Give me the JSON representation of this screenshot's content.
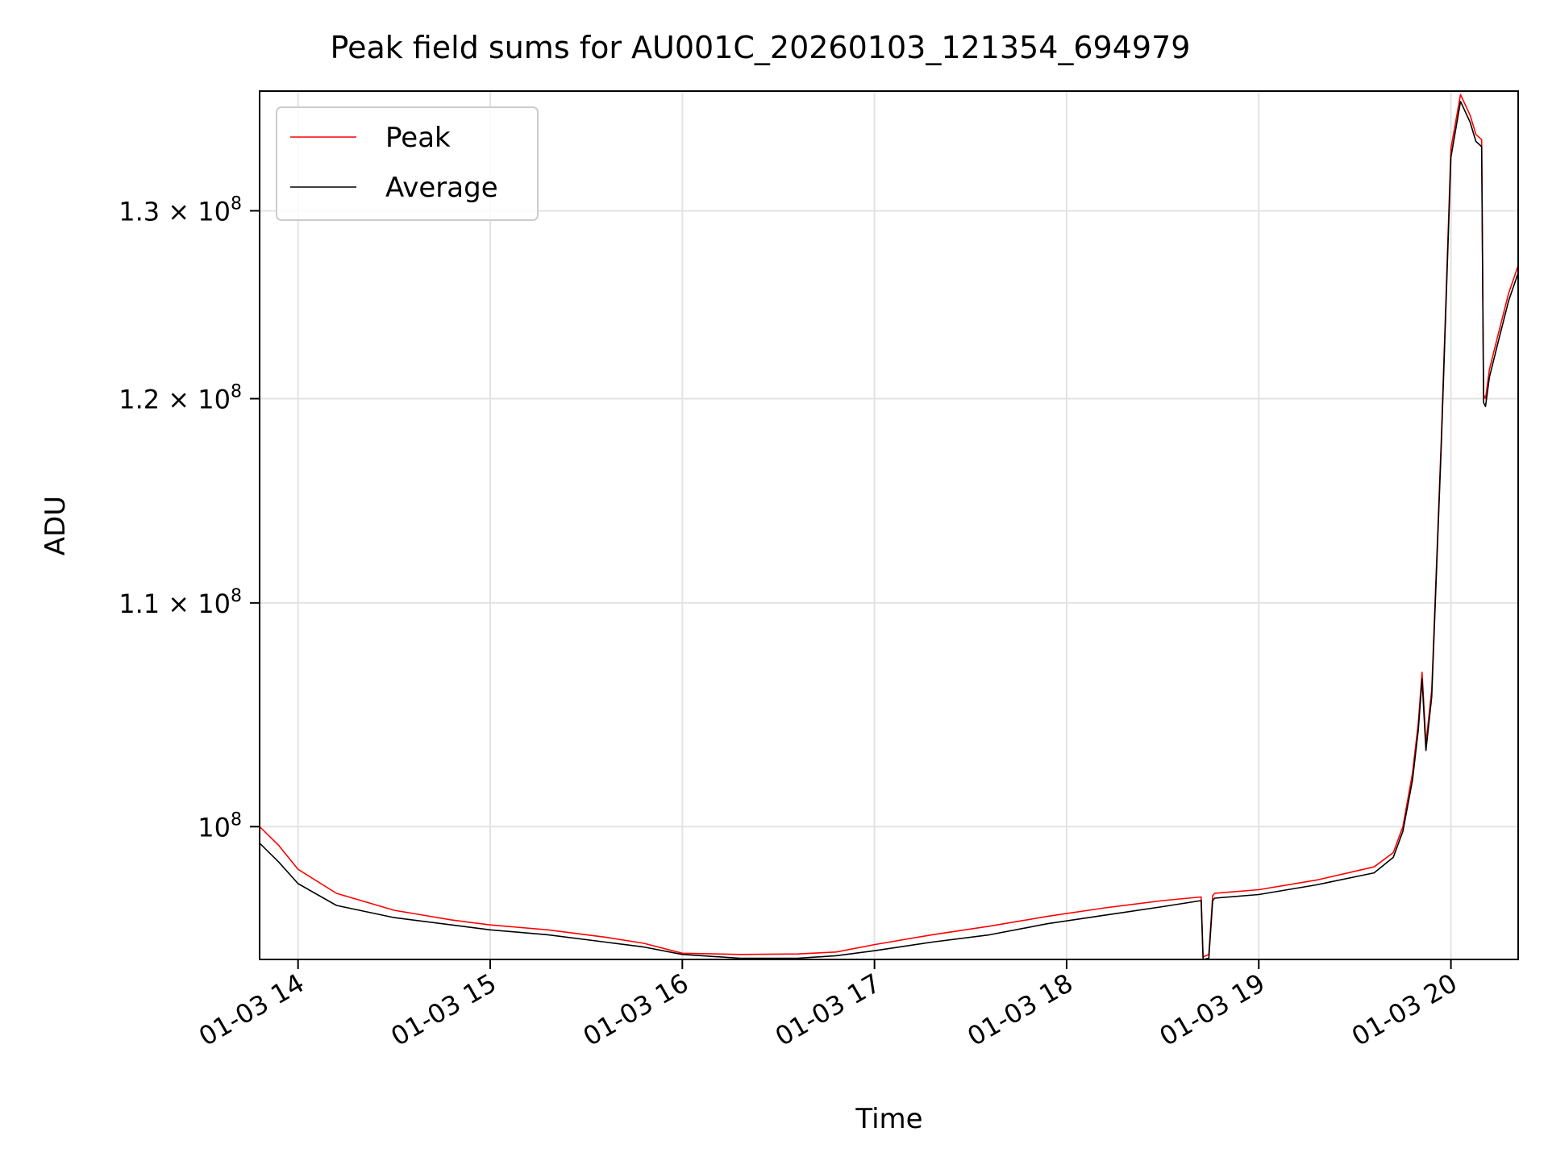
{
  "chart_data": {
    "type": "line",
    "title": "Peak field sums for AU001C_20260103_121354_694979",
    "xlabel": "Time",
    "ylabel": "ADU",
    "y_scale": "log",
    "xlim_hours": [
      13.8,
      20.35
    ],
    "ylim": [
      94500000,
      136800000
    ],
    "x_ticks": [
      {
        "value": 14,
        "label": "01-03 14"
      },
      {
        "value": 15,
        "label": "01-03 15"
      },
      {
        "value": 16,
        "label": "01-03 16"
      },
      {
        "value": 17,
        "label": "01-03 17"
      },
      {
        "value": 18,
        "label": "01-03 18"
      },
      {
        "value": 19,
        "label": "01-03 19"
      },
      {
        "value": 20,
        "label": "01-03 20"
      }
    ],
    "y_ticks": [
      {
        "value": 100000000,
        "mantissa": "",
        "exponent": "8"
      },
      {
        "value": 110000000,
        "mantissa": "1.1",
        "exponent": "8"
      },
      {
        "value": 120000000,
        "mantissa": "1.2",
        "exponent": "8"
      },
      {
        "value": 130000000,
        "mantissa": "1.3",
        "exponent": "8"
      }
    ],
    "grid": true,
    "legend_position": "top-left",
    "series": [
      {
        "name": "Peak",
        "color": "#ff0000",
        "x_hours": [
          13.8,
          13.9,
          14.0,
          14.2,
          14.5,
          14.8,
          15.0,
          15.3,
          15.6,
          15.8,
          16.0,
          16.3,
          16.6,
          16.8,
          17.0,
          17.3,
          17.6,
          17.9,
          18.2,
          18.5,
          18.7,
          18.71,
          18.74,
          18.76,
          18.77,
          19.0,
          19.3,
          19.6,
          19.7,
          19.75,
          19.8,
          19.83,
          19.85,
          19.87,
          19.9,
          19.95,
          20.0,
          20.05,
          20.1,
          20.13,
          20.16,
          20.17,
          20.18,
          20.2,
          20.25,
          20.3,
          20.35
        ],
        "values": [
          100000000,
          99200000,
          98200000,
          97200000,
          96500000,
          96100000,
          95900000,
          95700000,
          95400000,
          95150000,
          94750000,
          94700000,
          94720000,
          94800000,
          95100000,
          95500000,
          95850000,
          96250000,
          96600000,
          96900000,
          97050000,
          94600000,
          94700000,
          97100000,
          97200000,
          97350000,
          97750000,
          98300000,
          98900000,
          100000000,
          102300000,
          104500000,
          106800000,
          103600000,
          106000000,
          118000000,
          133500000,
          136600000,
          135400000,
          134300000,
          134000000,
          120200000,
          120000000,
          121500000,
          123500000,
          125500000,
          127000000
        ]
      },
      {
        "name": "Average",
        "color": "#000000",
        "x_hours": [
          13.8,
          13.9,
          14.0,
          14.2,
          14.5,
          14.8,
          15.0,
          15.3,
          15.6,
          15.8,
          16.0,
          16.3,
          16.6,
          16.8,
          17.0,
          17.3,
          17.6,
          17.9,
          18.2,
          18.5,
          18.7,
          18.71,
          18.74,
          18.76,
          18.77,
          19.0,
          19.3,
          19.6,
          19.7,
          19.75,
          19.8,
          19.83,
          19.85,
          19.87,
          19.9,
          19.95,
          20.0,
          20.05,
          20.1,
          20.13,
          20.16,
          20.17,
          20.18,
          20.2,
          20.25,
          20.3,
          20.35
        ],
        "values": [
          99300000,
          98500000,
          97600000,
          96700000,
          96200000,
          95900000,
          95700000,
          95500000,
          95200000,
          95000000,
          94700000,
          94550000,
          94550000,
          94650000,
          94850000,
          95200000,
          95500000,
          95950000,
          96300000,
          96650000,
          96900000,
          94500000,
          94550000,
          96900000,
          97000000,
          97150000,
          97550000,
          98050000,
          98700000,
          99800000,
          102000000,
          104200000,
          106500000,
          103300000,
          105700000,
          117700000,
          133000000,
          136200000,
          135000000,
          133900000,
          133600000,
          119800000,
          119600000,
          121100000,
          123100000,
          125100000,
          126600000
        ]
      }
    ]
  }
}
